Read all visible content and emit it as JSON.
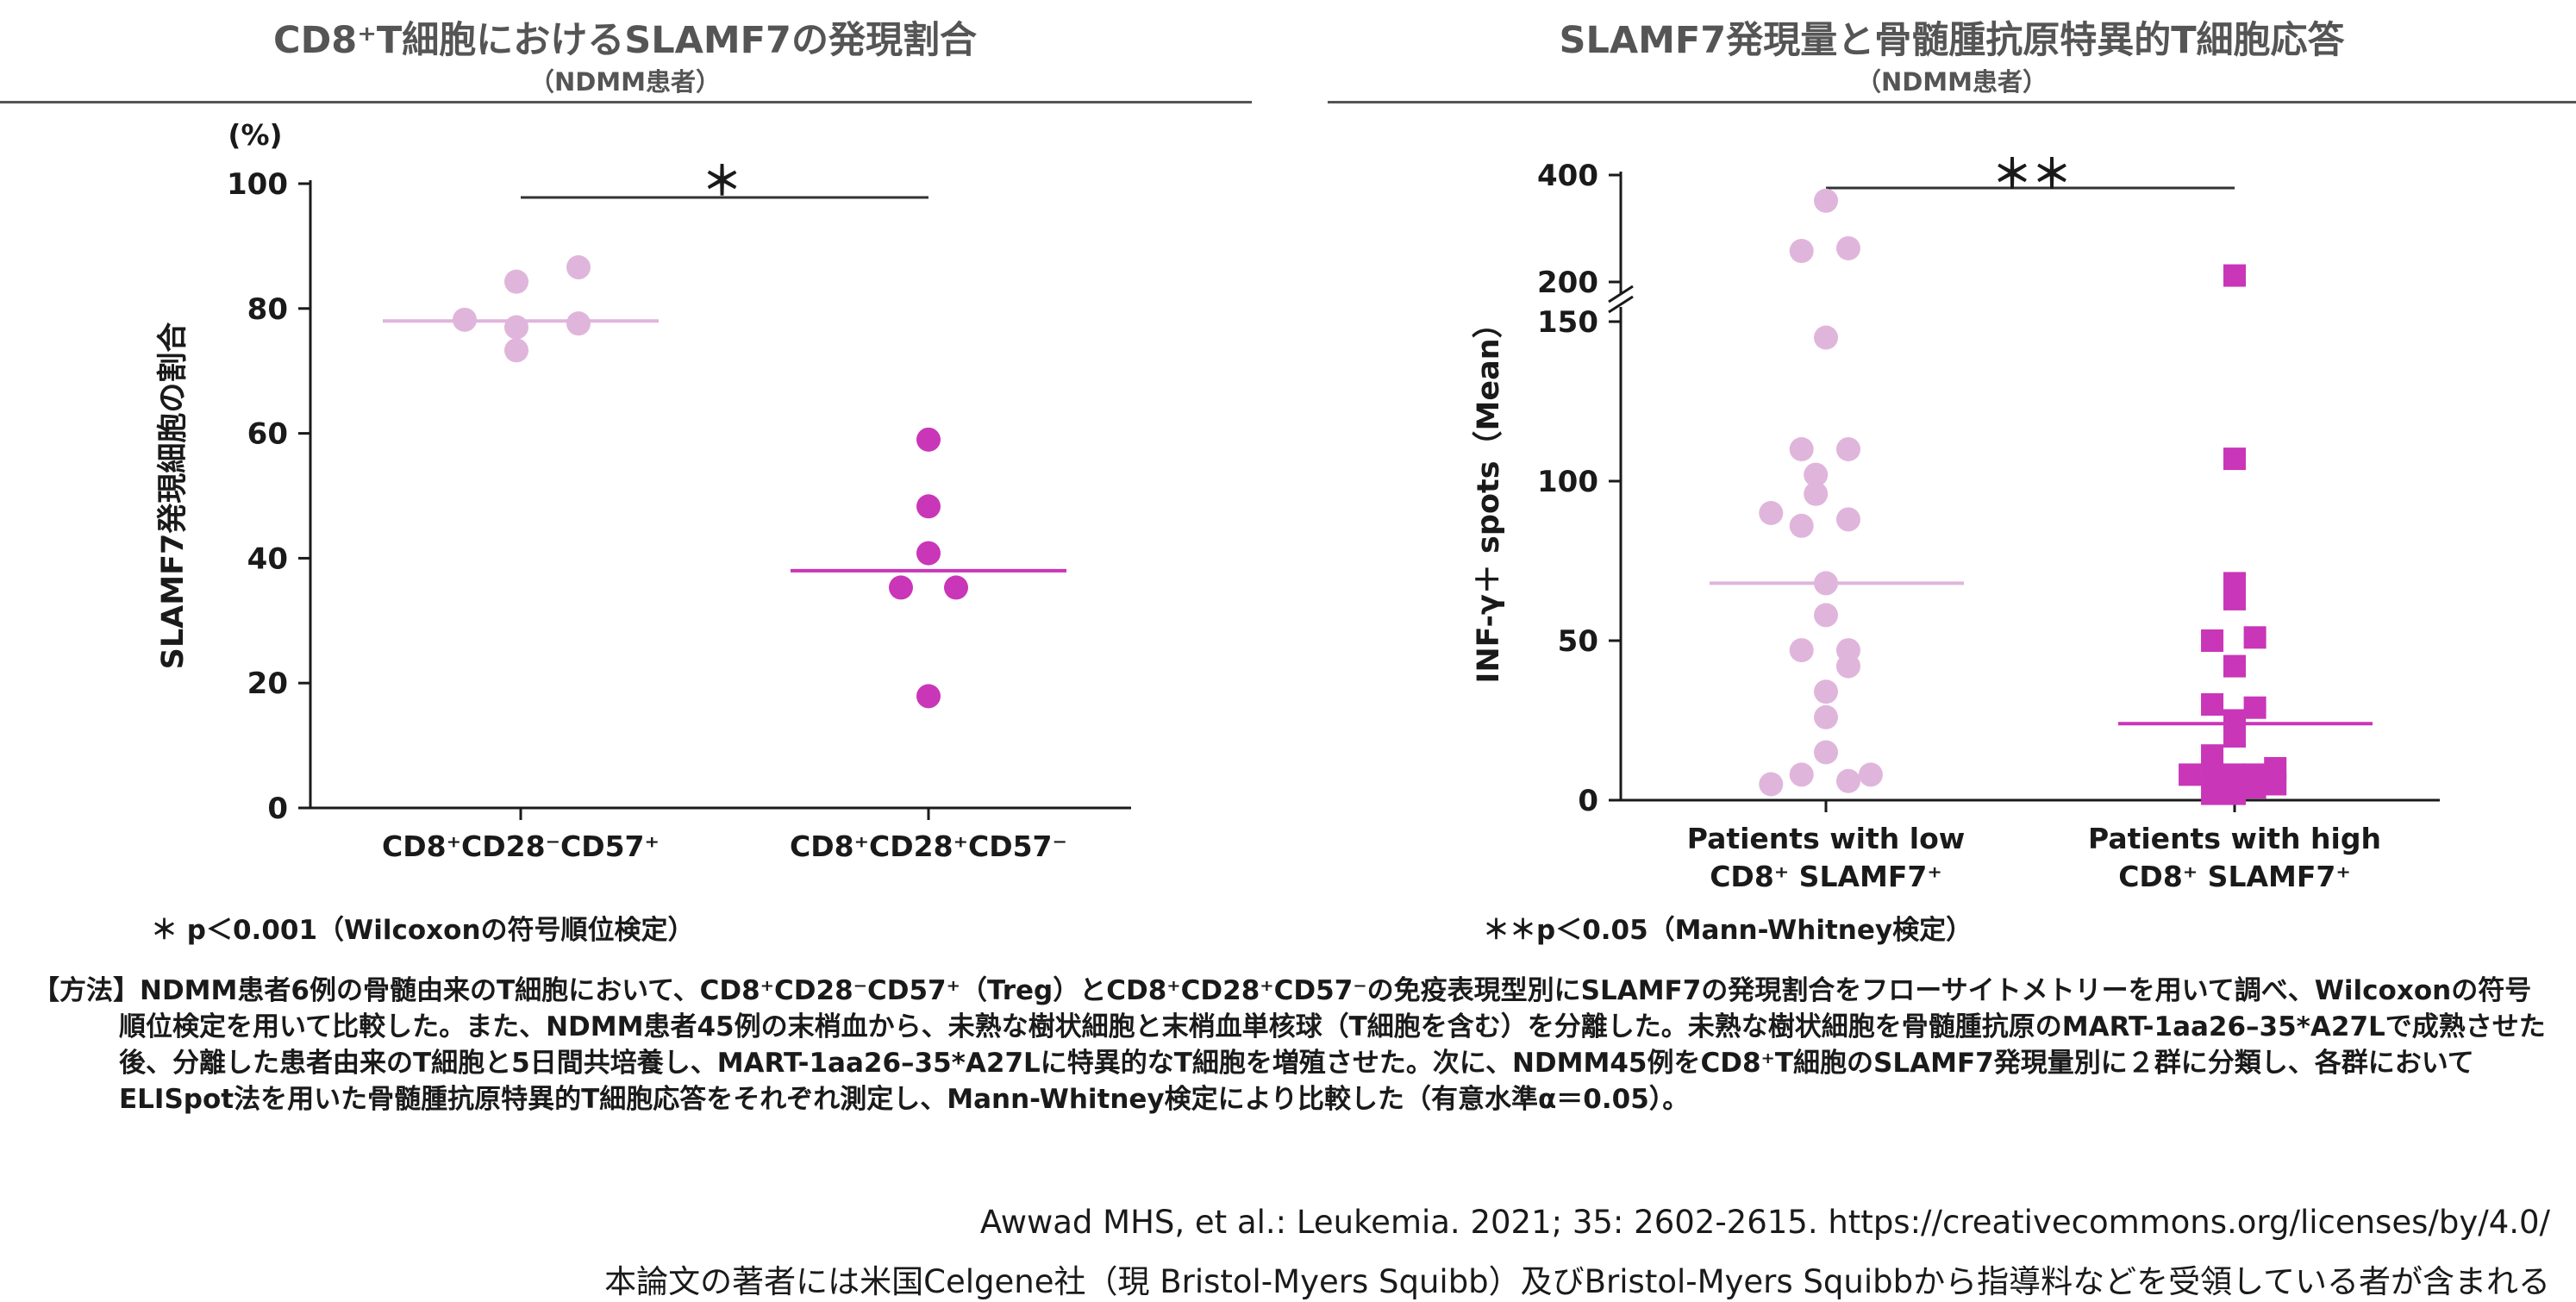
{
  "left_panel": {
    "title": "CD8⁺T細胞におけるSLAMF7の発現割合",
    "subtitle": "（NDMM患者）",
    "footnote": "＊ p＜0.001（Wilcoxonの符号順位検定）"
  },
  "right_panel": {
    "title": "SLAMF7発現量と骨髄腫抗原特異的T細胞応答",
    "subtitle": "（NDMM患者）",
    "footnote": "＊＊p＜0.05（Mann-Whitney検定）"
  },
  "methods": {
    "label": "【方法】",
    "text": "NDMM患者6例の骨髄由来のT細胞において、CD8⁺CD28⁻CD57⁺（Treg）とCD8⁺CD28⁺CD57⁻の免疫表現型別にSLAMF7の発現割合をフローサイトメトリーを用いて調べ、Wilcoxonの符号順位検定を用いて比較した。また、NDMM患者45例の末梢血から、未熟な樹状細胞と末梢血単核球（T細胞を含む）を分離した。未熟な樹状細胞を骨髄腫抗原のMART-1aa26–35*A27Lで成熟させた後、分離した患者由来のT細胞と5日間共培養し、MART-1aa26–35*A27Lに特異的なT細胞を増殖させた。次に、NDMM45例をCD8⁺T細胞のSLAMF7発現量別に２群に分類し、各群においてELISpot法を用いた骨髄腫抗原特異的T細胞応答をそれぞれ測定し、Mann-Whitney検定により比較した（有意水準α＝0.05）。"
  },
  "source": {
    "citation": "Awwad MHS, et al.: Leukemia. 2021; 35: 2602-2615. https://creativecommons.org/licenses/by/4.0/",
    "disclosure": "本論文の著者には米国Celgene社（現 Bristol-Myers Squibb）及びBristol-Myers Squibbから指導料などを受領している者が含まれる"
  },
  "colors": {
    "light": "#e0b5db",
    "dark": "#c936b8",
    "axis": "#1a1a1a",
    "rule": "#555555"
  },
  "chart_data": [
    {
      "type": "scatter",
      "title": "CD8⁺T細胞におけるSLAMF7の発現割合",
      "ylabel": "SLAMF7発現細胞の割合",
      "yunit": "(%)",
      "ylim": [
        0,
        100
      ],
      "yticks": [
        "0",
        "20",
        "40",
        "60",
        "80",
        "100"
      ],
      "categories": [
        "CD8⁺CD28⁻CD57⁺",
        "CD8⁺CD28⁺CD57⁻"
      ],
      "series": [
        {
          "category": "CD8⁺CD28⁻CD57⁺",
          "color": "#e0b5db",
          "marker": "circle",
          "mean": 78,
          "values": [
            78.2,
            77.0,
            73.3,
            84.3,
            86.6,
            77.6
          ]
        },
        {
          "category": "CD8⁺CD28⁺CD57⁻",
          "color": "#c936b8",
          "marker": "circle",
          "mean": 38,
          "values": [
            59,
            48.3,
            40.8,
            35.3,
            35.3,
            17.9
          ]
        }
      ],
      "significance": {
        "label": "＊",
        "between": [
          0,
          1
        ]
      }
    },
    {
      "type": "scatter",
      "title": "SLAMF7発現量と骨髄腫抗原特異的T細胞応答",
      "ylabel": "INF-γ＋ spots（Mean）",
      "ylim": [
        0,
        400
      ],
      "axis_break": [
        150,
        200
      ],
      "yticks": [
        "0",
        "50",
        "100",
        "150",
        "200",
        "400"
      ],
      "categories": [
        "Patients with low\nCD8⁺ SLAMF7⁺",
        "Patients with high\nCD8⁺ SLAMF7⁺"
      ],
      "category_lines": [
        [
          "Patients with low",
          "CD8⁺ SLAMF7⁺"
        ],
        [
          "Patients with high",
          "CD8⁺ SLAMF7⁺"
        ]
      ],
      "series": [
        {
          "category": "Patients with low CD8⁺ SLAMF7⁺",
          "color": "#e0b5db",
          "marker": "circle",
          "mean": 68,
          "points": [
            [
              0,
              352
            ],
            [
              -0.12,
              258
            ],
            [
              0.11,
              263
            ],
            [
              0,
              145
            ],
            [
              -0.27,
              90
            ],
            [
              -0.12,
              110
            ],
            [
              0.11,
              110
            ],
            [
              -0.05,
              102
            ],
            [
              -0.12,
              86
            ],
            [
              0.11,
              88
            ],
            [
              -0.05,
              96
            ],
            [
              0,
              68
            ],
            [
              0,
              58
            ],
            [
              -0.12,
              47
            ],
            [
              0.11,
              47
            ],
            [
              0.11,
              42
            ],
            [
              0,
              34
            ],
            [
              0,
              26
            ],
            [
              0,
              15
            ],
            [
              -0.12,
              8
            ],
            [
              0.11,
              6
            ],
            [
              -0.27,
              5
            ],
            [
              0.22,
              8
            ]
          ]
        },
        {
          "category": "Patients with high CD8⁺ SLAMF7⁺",
          "color": "#c936b8",
          "marker": "square",
          "mean": 24,
          "points": [
            [
              0,
              212
            ],
            [
              0,
              107
            ],
            [
              0,
              68
            ],
            [
              0,
              63
            ],
            [
              -0.11,
              50
            ],
            [
              0.1,
              51
            ],
            [
              0,
              42
            ],
            [
              -0.11,
              30
            ],
            [
              0.1,
              29
            ],
            [
              0,
              25
            ],
            [
              0,
              20
            ],
            [
              -0.11,
              14
            ],
            [
              -0.22,
              8
            ],
            [
              -0.11,
              8
            ],
            [
              0,
              8
            ],
            [
              0.1,
              8
            ],
            [
              0.2,
              10
            ],
            [
              -0.11,
              2
            ],
            [
              0,
              2
            ],
            [
              0.1,
              4
            ],
            [
              0.2,
              5
            ]
          ]
        }
      ],
      "significance": {
        "label": "＊＊",
        "between": [
          0,
          1
        ]
      }
    }
  ]
}
